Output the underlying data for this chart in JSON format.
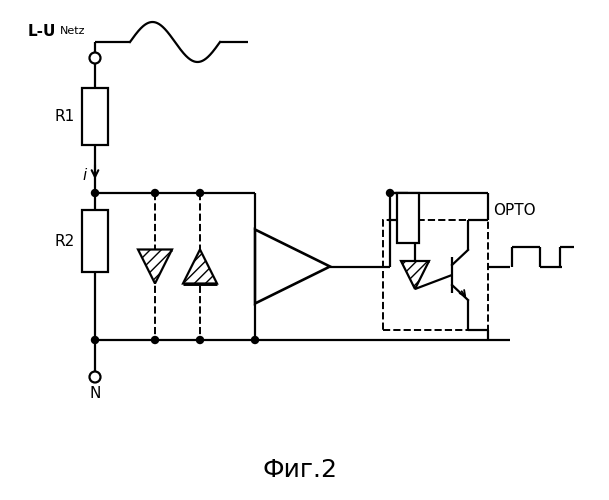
{
  "title": "Фиг.2",
  "label_L_U": "L-U",
  "label_Netz": "Netz",
  "label_R1": "R1",
  "label_R2": "R2",
  "label_i": "i",
  "label_N": "N",
  "label_OPTO": "OPTO",
  "bg_color": "#ffffff",
  "lw": 1.6,
  "dlw": 1.4
}
